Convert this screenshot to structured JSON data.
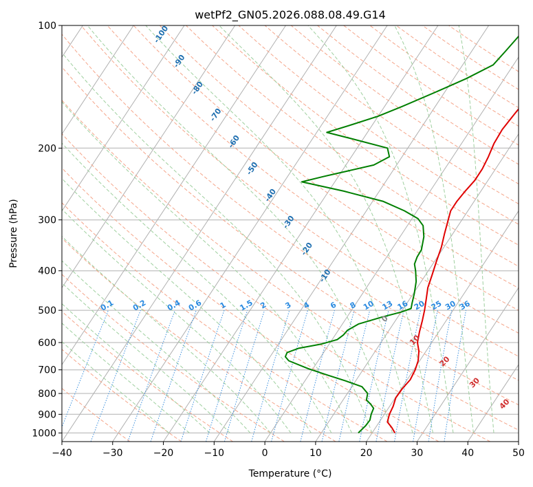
{
  "chart_data": {
    "type": "line",
    "title": "wetPf2_GN05.2026.088.08.49.G14",
    "xlabel": "Temperature (°C)",
    "ylabel": "Pressure (hPa)",
    "xlim": [
      -40,
      50
    ],
    "ylim": [
      1050,
      100
    ],
    "y_scale": "log",
    "x_ticks": [
      "−40",
      "−30",
      "−20",
      "−10",
      "0",
      "10",
      "20",
      "30",
      "40",
      "50"
    ],
    "y_ticks": [
      "100",
      "200",
      "300",
      "400",
      "500",
      "600",
      "700",
      "800",
      "900",
      "1000"
    ],
    "grid": true,
    "series": [
      {
        "color": "#e00000",
        "points": [
          [
            24.5,
            1000
          ],
          [
            23.2,
            970
          ],
          [
            21.6,
            940
          ],
          [
            21.0,
            900
          ],
          [
            20.7,
            860
          ],
          [
            20.1,
            820
          ],
          [
            20.2,
            780
          ],
          [
            20.6,
            740
          ],
          [
            20.3,
            700
          ],
          [
            19.7,
            665
          ],
          [
            18.6,
            630
          ],
          [
            17.2,
            600
          ],
          [
            16.2,
            565
          ],
          [
            15.3,
            530
          ],
          [
            14.4,
            500
          ],
          [
            13.3,
            470
          ],
          [
            12.1,
            440
          ],
          [
            11.3,
            410
          ],
          [
            10.4,
            380
          ],
          [
            9.5,
            350
          ],
          [
            8.4,
            325
          ],
          [
            7.3,
            300
          ],
          [
            6.6,
            285
          ],
          [
            6.6,
            270
          ],
          [
            6.9,
            255
          ],
          [
            7.4,
            240
          ],
          [
            7.4,
            225
          ],
          [
            7.0,
            210
          ],
          [
            6.4,
            195
          ],
          [
            6.2,
            180
          ],
          [
            6.6,
            165
          ],
          [
            7.1,
            150
          ],
          [
            6.9,
            138
          ],
          [
            6.3,
            128
          ],
          [
            6.6,
            118
          ],
          [
            7.0,
            108
          ],
          [
            7.2,
            100
          ]
        ]
      },
      {
        "color": "#007f00",
        "points": [
          [
            17.3,
            1000
          ],
          [
            17.8,
            960
          ],
          [
            17.9,
            930
          ],
          [
            17.4,
            900
          ],
          [
            17.1,
            870
          ],
          [
            16.0,
            850
          ],
          [
            14.6,
            830
          ],
          [
            14.0,
            800
          ],
          [
            12.0,
            770
          ],
          [
            8.0,
            745
          ],
          [
            3.5,
            720
          ],
          [
            -1.0,
            695
          ],
          [
            -5.8,
            665
          ],
          [
            -7.0,
            650
          ],
          [
            -7.2,
            635
          ],
          [
            -5.5,
            620
          ],
          [
            -1.5,
            605
          ],
          [
            1.0,
            590
          ],
          [
            1.6,
            575
          ],
          [
            1.8,
            560
          ],
          [
            3.2,
            540
          ],
          [
            6.8,
            520
          ],
          [
            10.0,
            505
          ],
          [
            11.5,
            495
          ],
          [
            11.0,
            480
          ],
          [
            10.2,
            455
          ],
          [
            9.0,
            425
          ],
          [
            7.5,
            400
          ],
          [
            6.4,
            385
          ],
          [
            6.0,
            370
          ],
          [
            5.9,
            355
          ],
          [
            4.7,
            330
          ],
          [
            3.1,
            310
          ],
          [
            1.2,
            298
          ],
          [
            -2.5,
            285
          ],
          [
            -8.0,
            270
          ],
          [
            -17.0,
            255
          ],
          [
            -26.5,
            242
          ],
          [
            -23.0,
            235
          ],
          [
            -14.5,
            220
          ],
          [
            -12.5,
            210
          ],
          [
            -14.0,
            200
          ],
          [
            -22.0,
            190
          ],
          [
            -28.0,
            183
          ],
          [
            -24.0,
            175
          ],
          [
            -20.0,
            167
          ],
          [
            -16.5,
            158
          ],
          [
            -11.5,
            145
          ],
          [
            -7.5,
            135
          ],
          [
            -4.0,
            125
          ],
          [
            -3.3,
            115
          ],
          [
            -2.6,
            105
          ],
          [
            -1.5,
            100
          ]
        ]
      }
    ],
    "mixing_ratio_labels": [
      "0.1",
      "0.2",
      "0.4",
      "0.6",
      "1",
      "1.5",
      "2",
      "3",
      "4",
      "6",
      "8",
      "10",
      "13",
      "16",
      "20",
      "25",
      "30",
      "36"
    ],
    "dry_adiabat_labels": [
      "-100",
      "-90",
      "-80",
      "-70",
      "-60",
      "-50",
      "-40",
      "-30",
      "-20",
      "-10"
    ],
    "moist_adiabat_labels": [
      "0",
      "10",
      "20",
      "30",
      "40"
    ],
    "colors": {
      "temperature": "#e00000",
      "dewpoint": "#007f00",
      "isotherm": "#b0b0b0",
      "dry_adiabat": "#f5a58a",
      "moist_adiabat": "#9ecf9e",
      "mixing_ratio": "#3a8fdd",
      "dry_label": "#1f6fb0",
      "moist_label": "#d03030",
      "zero_label": "#888888",
      "mixing_label": "#2a8ae0"
    }
  }
}
